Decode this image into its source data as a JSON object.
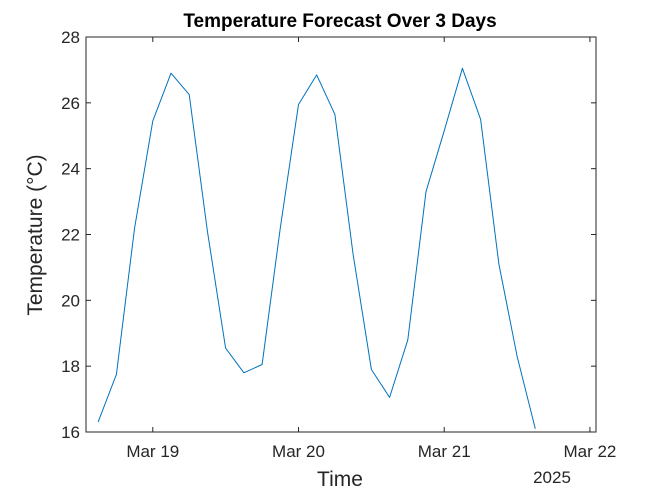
{
  "chart_data": {
    "type": "line",
    "title": "Temperature Forecast Over 3 Days",
    "xlabel": "Time",
    "ylabel": "Temperature (°C)",
    "x_secondary_label": "2025",
    "x_ticks": [
      "Mar 19",
      "Mar 20",
      "Mar 21",
      "Mar 22"
    ],
    "x_tick_positions": [
      0,
      24,
      48,
      72
    ],
    "xlim": [
      -11,
      73
    ],
    "ylim": [
      16,
      28
    ],
    "y_ticks": [
      16,
      18,
      20,
      22,
      24,
      26,
      28
    ],
    "grid": false,
    "x_units": "hours since Mar 19 00:00",
    "series": [
      {
        "name": "",
        "color": "#0072BD",
        "x": [
          -9,
          -6,
          -3,
          0,
          3,
          6,
          9,
          12,
          15,
          18,
          21,
          24,
          27,
          30,
          33,
          36,
          39,
          42,
          45,
          48,
          51,
          54,
          57,
          60,
          63
        ],
        "y": [
          16.3,
          17.75,
          22.2,
          25.45,
          26.9,
          26.25,
          22.1,
          18.55,
          17.8,
          18.05,
          22.2,
          25.95,
          26.85,
          25.65,
          21.4,
          17.9,
          17.05,
          18.8,
          23.3,
          25.15,
          27.05,
          25.5,
          21.1,
          18.3,
          16.1
        ]
      }
    ]
  }
}
